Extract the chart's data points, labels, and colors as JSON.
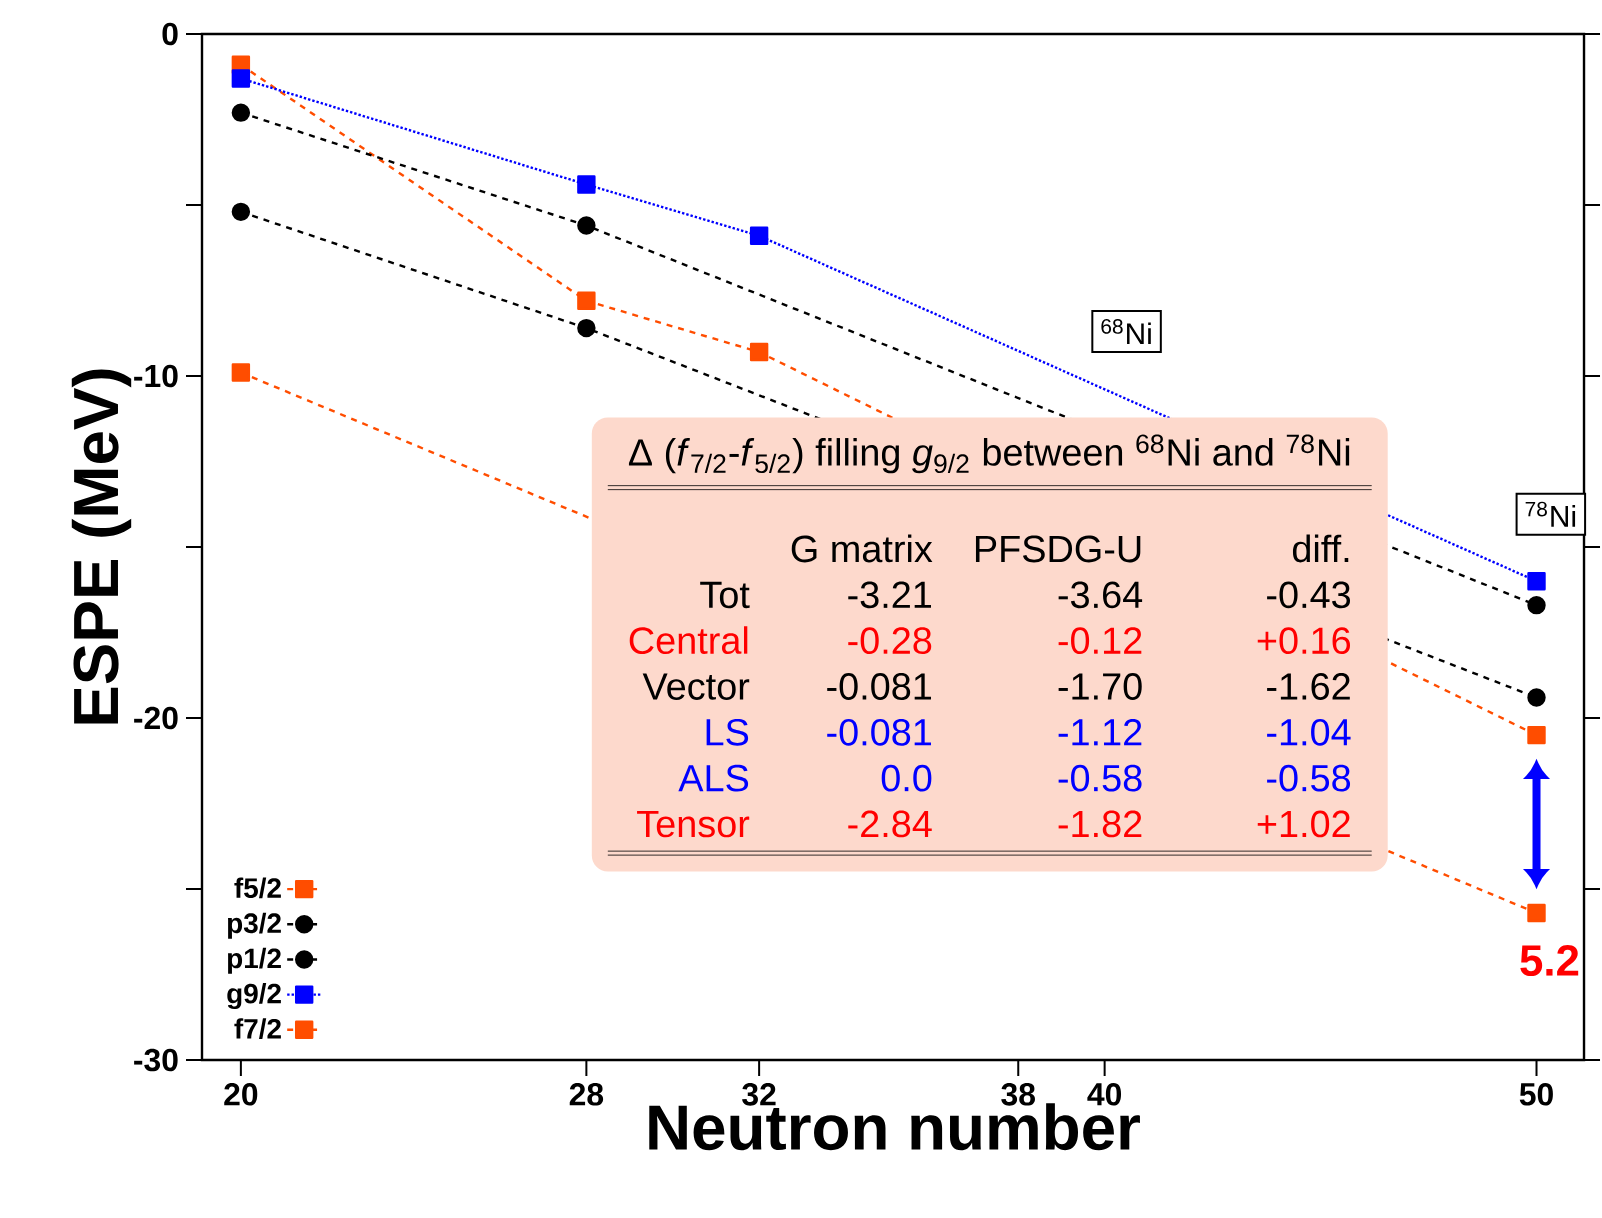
{
  "chart_data": {
    "type": "line",
    "xlabel": "Neutron number",
    "ylabel": "ESPE (MeV)",
    "xlim": [
      19.1,
      51.1
    ],
    "ylim": [
      -30,
      0
    ],
    "xticks": [
      20,
      28,
      32,
      38,
      40,
      50
    ],
    "yticks": [
      -30,
      {
        "value": -25,
        "label": null
      },
      -20,
      {
        "value": -15,
        "label": null
      },
      -10,
      {
        "value": -5,
        "label": null
      },
      0
    ],
    "legend": "bottom left",
    "series": [
      {
        "name": "f5/2",
        "color": "#ff4d00",
        "marker": "square",
        "line_style": "dashed",
        "x": [
          20,
          28,
          32,
          50
        ],
        "values": [
          -0.9,
          -7.8,
          -9.3,
          -20.5
        ]
      },
      {
        "name": "p3/2",
        "color": "#000000",
        "marker": "circle",
        "line_style": "dashed",
        "x": [
          20,
          28,
          50
        ],
        "values": [
          -5.2,
          -8.6,
          -19.4
        ]
      },
      {
        "name": "p1/2",
        "color": "#000000",
        "marker": "circle",
        "line_style": "dashed",
        "x": [
          20,
          28,
          50
        ],
        "values": [
          -2.3,
          -5.6,
          -16.7
        ]
      },
      {
        "name": "g9/2",
        "color": "#0000ff",
        "marker": "square",
        "line_style": "dotted",
        "x": [
          20,
          28,
          32,
          50
        ],
        "values": [
          -1.3,
          -4.4,
          -5.9,
          -16.0
        ]
      },
      {
        "name": "f7/2",
        "color": "#ff4d00",
        "marker": "square",
        "line_style": "dashed",
        "x": [
          20,
          50
        ],
        "values": [
          -9.9,
          -25.7
        ]
      }
    ],
    "annotations": [
      "$^{68}$Ni",
      "$^{78}$Ni",
      "5.2",
      "Δ (*f*$_{7/2}$-*f*$_{5/2}$) filling *g*$_{9/2}$ between $^{68}$Ni and $^{78}$Ni",
      "G matrix",
      "PFSDG-U",
      "diff.",
      "Tot",
      "-3.21",
      "-3.64",
      "-0.43",
      "Central",
      "-0.28",
      "-0.12",
      "+0.16",
      "Vector",
      "-0.081",
      "-1.70",
      "-1.62",
      "LS",
      "-0.081",
      "-1.12",
      "-1.04",
      "ALS",
      "0.0",
      "-0.58",
      "-0.58",
      "Tensor",
      "-2.84",
      "-1.82",
      "+1.02"
    ]
  }
}
